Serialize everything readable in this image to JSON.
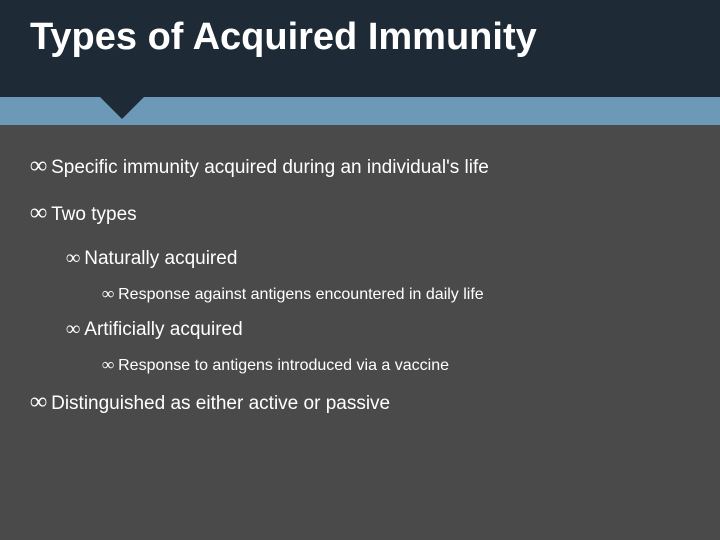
{
  "colors": {
    "header_bg": "#1e2a36",
    "band_bg": "#6c99b8",
    "content_bg": "#4a4a4a",
    "text_light": "#ffffff"
  },
  "title": "Types of Acquired Immunity",
  "bullet_glyph": "∞",
  "bullets": {
    "b1": "Specific immunity acquired during an individual's life",
    "b2": "Two types",
    "b2a": "Naturally acquired",
    "b2a1": "Response against antigens encountered in daily life",
    "b2b": "Artificially acquired",
    "b2b1": "Response to antigens introduced via a vaccine",
    "b3": "Distinguished as either active or passive"
  },
  "typography": {
    "title_fontsize": 38,
    "l1_fontsize": 19,
    "l3_fontsize": 16,
    "font_family": "Arial"
  }
}
